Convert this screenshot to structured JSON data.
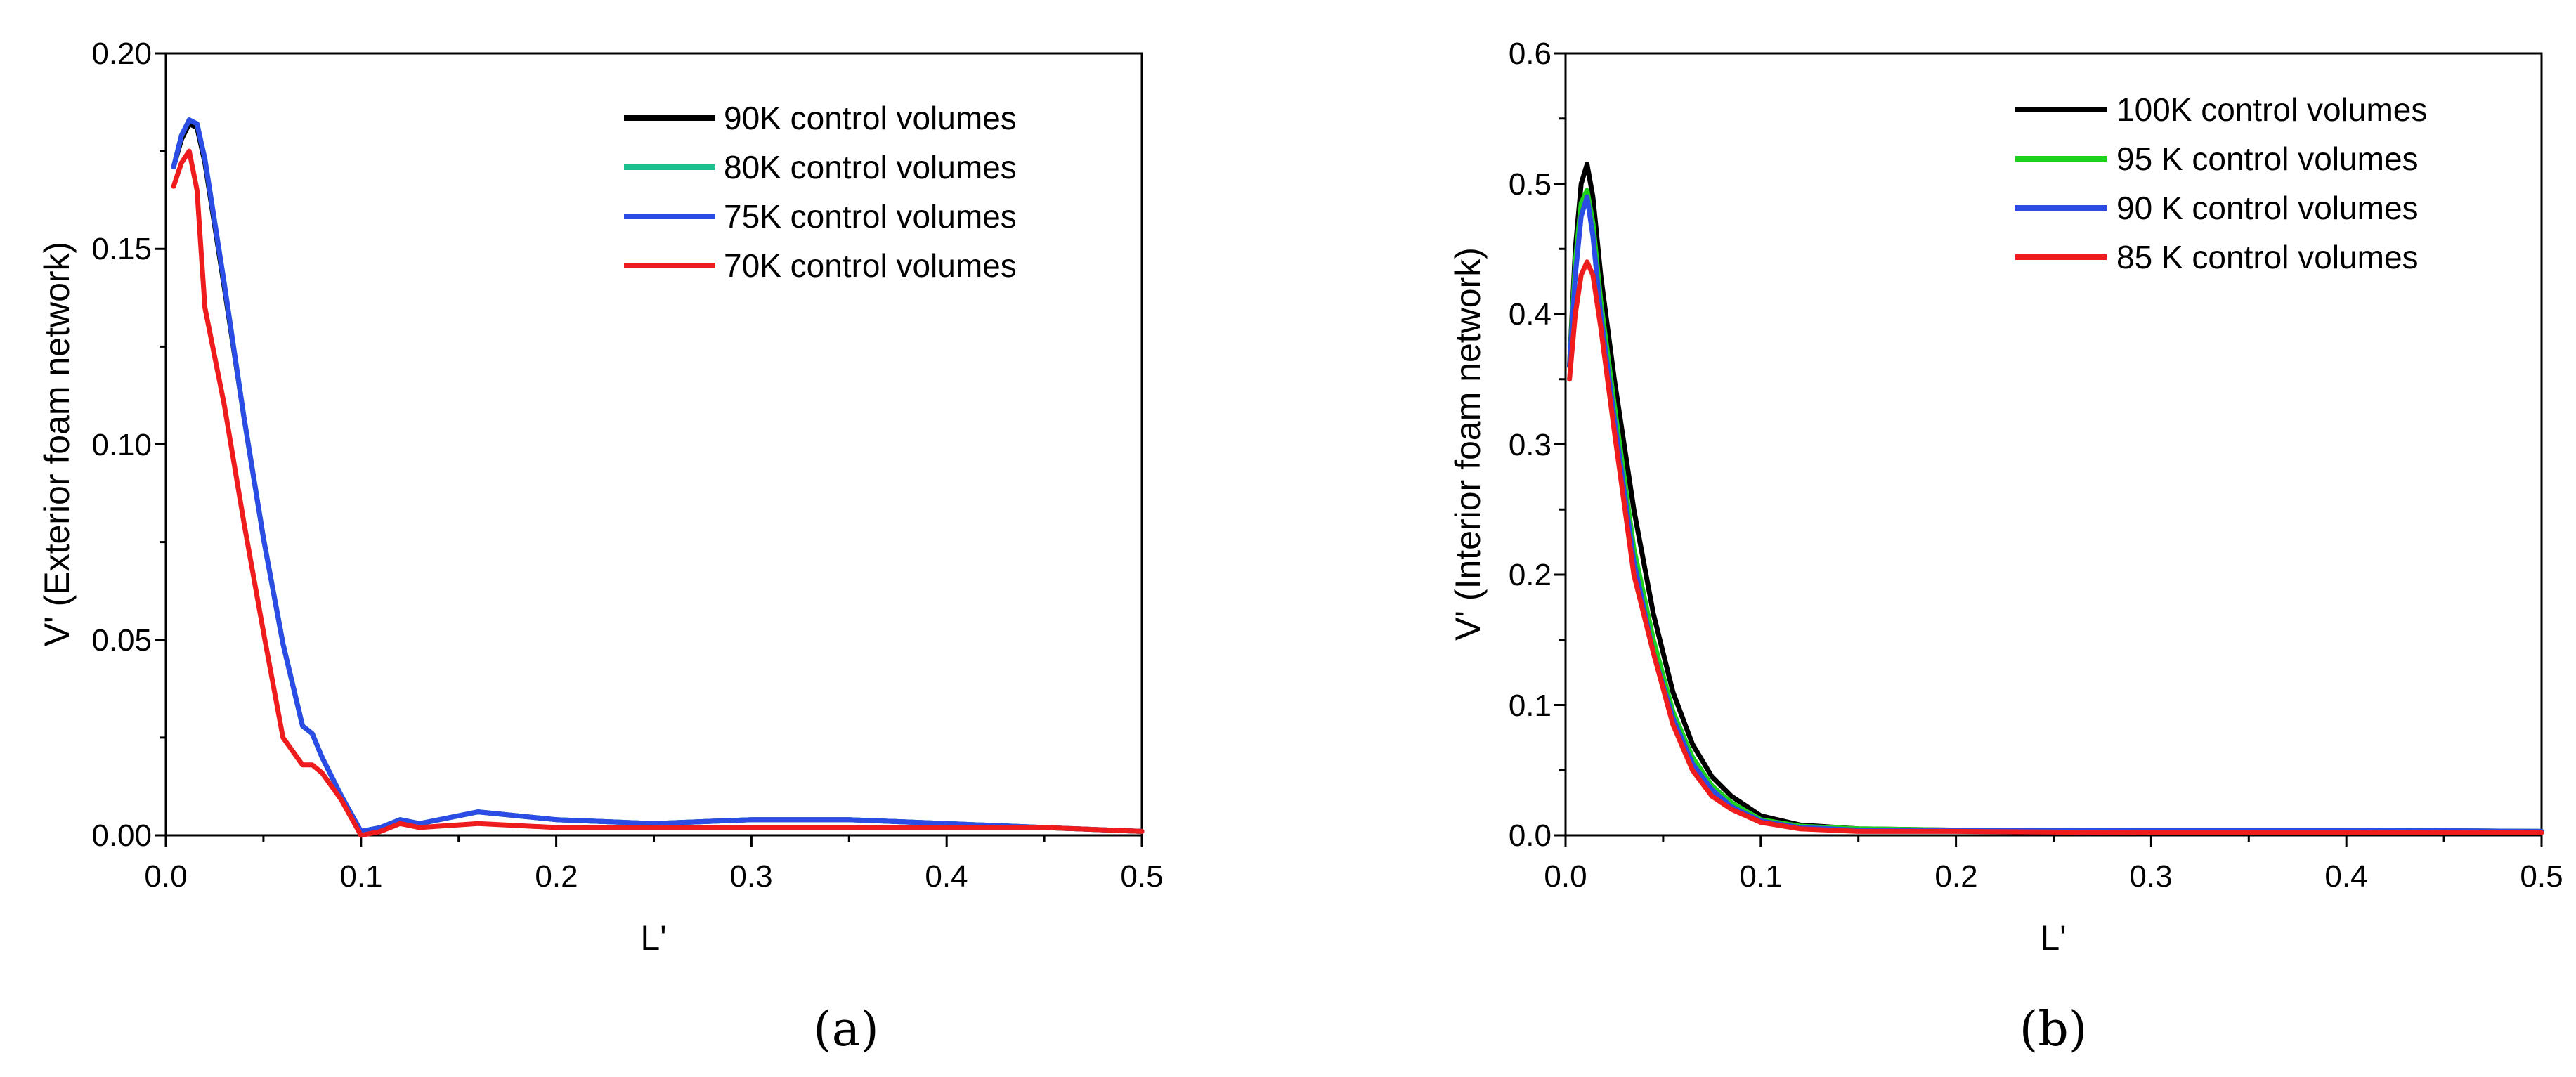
{
  "chart_data": [
    {
      "type": "line",
      "panel_label": "(a)",
      "xlabel": "L'",
      "ylabel": "V' (Exterior foam network)",
      "xlim": [
        0.0,
        0.5
      ],
      "ylim": [
        0.0,
        0.2
      ],
      "xticks": [
        "0.0",
        "0.1",
        "0.2",
        "0.3",
        "0.4",
        "0.5"
      ],
      "yticks": [
        "0.00",
        "0.05",
        "0.10",
        "0.15",
        "0.20"
      ],
      "legend_position": "top-right",
      "series": [
        {
          "name": "90K control volumes",
          "color": "#000000",
          "x": [
            0.004,
            0.008,
            0.012,
            0.016,
            0.02,
            0.03,
            0.04,
            0.05,
            0.06,
            0.07,
            0.075,
            0.08,
            0.09,
            0.1,
            0.11,
            0.12,
            0.13,
            0.16,
            0.2,
            0.25,
            0.3,
            0.35,
            0.4,
            0.45,
            0.5
          ],
          "values": [
            0.171,
            0.178,
            0.182,
            0.181,
            0.172,
            0.14,
            0.107,
            0.076,
            0.049,
            0.028,
            0.026,
            0.02,
            0.01,
            0.001,
            0.002,
            0.004,
            0.003,
            0.006,
            0.004,
            0.003,
            0.004,
            0.004,
            0.003,
            0.002,
            0.001
          ]
        },
        {
          "name": "80K control volumes",
          "color": "#1fbf8f",
          "x": [
            0.004,
            0.008,
            0.012,
            0.016,
            0.02,
            0.03,
            0.04,
            0.05,
            0.06,
            0.07,
            0.075,
            0.08,
            0.09,
            0.1,
            0.11,
            0.12,
            0.13,
            0.16,
            0.2,
            0.25,
            0.3,
            0.35,
            0.4,
            0.45,
            0.5
          ],
          "values": [
            0.171,
            0.179,
            0.183,
            0.182,
            0.173,
            0.141,
            0.107,
            0.076,
            0.049,
            0.028,
            0.026,
            0.02,
            0.01,
            0.001,
            0.002,
            0.004,
            0.003,
            0.006,
            0.004,
            0.003,
            0.004,
            0.004,
            0.003,
            0.002,
            0.001
          ]
        },
        {
          "name": "75K control volumes",
          "color": "#2b4de6",
          "x": [
            0.004,
            0.008,
            0.012,
            0.016,
            0.02,
            0.03,
            0.04,
            0.05,
            0.06,
            0.07,
            0.075,
            0.08,
            0.09,
            0.1,
            0.11,
            0.12,
            0.13,
            0.16,
            0.2,
            0.25,
            0.3,
            0.35,
            0.4,
            0.45,
            0.5
          ],
          "values": [
            0.171,
            0.179,
            0.183,
            0.182,
            0.173,
            0.141,
            0.107,
            0.076,
            0.049,
            0.028,
            0.026,
            0.02,
            0.01,
            0.001,
            0.002,
            0.004,
            0.003,
            0.006,
            0.004,
            0.003,
            0.004,
            0.004,
            0.003,
            0.002,
            0.001
          ]
        },
        {
          "name": "70K control volumes",
          "color": "#ee1c1c",
          "x": [
            0.004,
            0.008,
            0.012,
            0.016,
            0.02,
            0.03,
            0.04,
            0.05,
            0.06,
            0.07,
            0.075,
            0.08,
            0.09,
            0.1,
            0.11,
            0.12,
            0.13,
            0.16,
            0.2,
            0.25,
            0.3,
            0.35,
            0.4,
            0.45,
            0.5
          ],
          "values": [
            0.166,
            0.172,
            0.175,
            0.165,
            0.135,
            0.11,
            0.08,
            0.052,
            0.025,
            0.018,
            0.018,
            0.016,
            0.009,
            0.0,
            0.001,
            0.003,
            0.002,
            0.003,
            0.002,
            0.002,
            0.002,
            0.002,
            0.002,
            0.002,
            0.001
          ]
        }
      ]
    },
    {
      "type": "line",
      "panel_label": "(b)",
      "xlabel": "L'",
      "ylabel": "V' (Interior foam network)",
      "xlim": [
        0.0,
        0.5
      ],
      "ylim": [
        0.0,
        0.6
      ],
      "xticks": [
        "0.0",
        "0.1",
        "0.2",
        "0.3",
        "0.4",
        "0.5"
      ],
      "yticks": [
        "0.0",
        "0.1",
        "0.2",
        "0.3",
        "0.4",
        "0.5",
        "0.6"
      ],
      "legend_position": "top-right",
      "series": [
        {
          "name": "100K control volumes",
          "color": "#000000",
          "x": [
            0.002,
            0.005,
            0.008,
            0.011,
            0.014,
            0.018,
            0.025,
            0.035,
            0.045,
            0.055,
            0.065,
            0.075,
            0.085,
            0.1,
            0.12,
            0.15,
            0.2,
            0.3,
            0.4,
            0.5
          ],
          "values": [
            0.36,
            0.45,
            0.5,
            0.515,
            0.49,
            0.43,
            0.35,
            0.25,
            0.17,
            0.11,
            0.07,
            0.045,
            0.03,
            0.015,
            0.008,
            0.005,
            0.004,
            0.004,
            0.004,
            0.003
          ]
        },
        {
          "name": "95 K control volumes",
          "color": "#1fd11f",
          "x": [
            0.002,
            0.005,
            0.008,
            0.011,
            0.014,
            0.018,
            0.025,
            0.035,
            0.045,
            0.055,
            0.065,
            0.075,
            0.085,
            0.1,
            0.12,
            0.15,
            0.2,
            0.3,
            0.4,
            0.5
          ],
          "values": [
            0.36,
            0.44,
            0.485,
            0.495,
            0.47,
            0.41,
            0.33,
            0.22,
            0.15,
            0.095,
            0.06,
            0.038,
            0.025,
            0.012,
            0.007,
            0.005,
            0.004,
            0.004,
            0.004,
            0.003
          ]
        },
        {
          "name": "90 K control volumes",
          "color": "#2b4de6",
          "x": [
            0.002,
            0.005,
            0.008,
            0.011,
            0.014,
            0.018,
            0.025,
            0.035,
            0.045,
            0.055,
            0.065,
            0.075,
            0.085,
            0.1,
            0.12,
            0.15,
            0.2,
            0.3,
            0.4,
            0.5
          ],
          "values": [
            0.36,
            0.43,
            0.475,
            0.49,
            0.46,
            0.4,
            0.32,
            0.21,
            0.14,
            0.09,
            0.055,
            0.035,
            0.022,
            0.011,
            0.006,
            0.004,
            0.004,
            0.004,
            0.004,
            0.003
          ]
        },
        {
          "name": "85 K control volumes",
          "color": "#ee1c1c",
          "x": [
            0.002,
            0.005,
            0.008,
            0.011,
            0.014,
            0.018,
            0.025,
            0.035,
            0.045,
            0.055,
            0.065,
            0.075,
            0.085,
            0.1,
            0.12,
            0.15,
            0.2,
            0.3,
            0.4,
            0.5
          ],
          "values": [
            0.35,
            0.4,
            0.43,
            0.44,
            0.43,
            0.39,
            0.31,
            0.2,
            0.14,
            0.085,
            0.05,
            0.03,
            0.02,
            0.01,
            0.005,
            0.003,
            0.003,
            0.002,
            0.002,
            0.002
          ]
        }
      ]
    }
  ]
}
